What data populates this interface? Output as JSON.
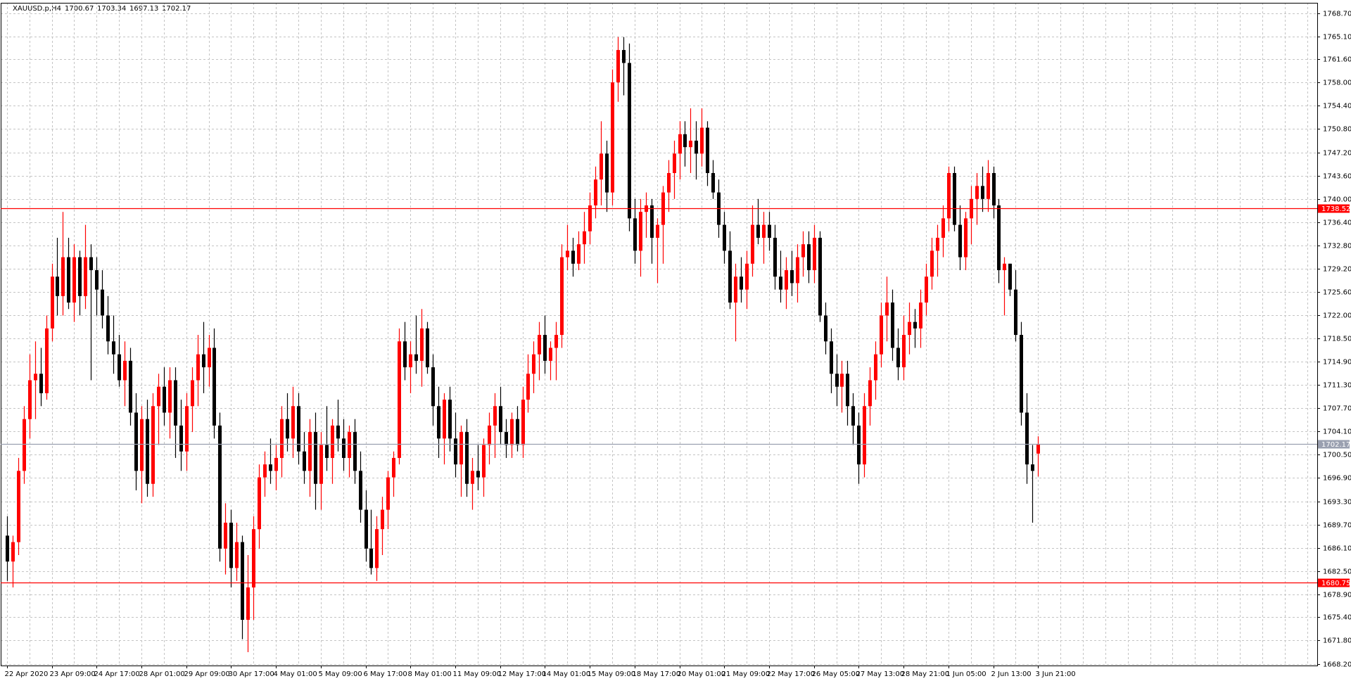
{
  "chart_data": {
    "type": "candlestick",
    "title": "XAUUSD.p,H4",
    "categories": [
      "22 Apr 2020",
      null,
      null,
      null,
      null,
      null,
      null,
      null,
      "23 Apr 09:00",
      null,
      null,
      null,
      null,
      null,
      null,
      null,
      "24 Apr 17:00",
      null,
      null,
      null,
      null,
      null,
      null,
      null,
      "28 Apr 01:00",
      null,
      null,
      null,
      null,
      null,
      null,
      null,
      "29 Apr 09:00",
      null,
      null,
      null,
      null,
      null,
      null,
      null,
      "30 Apr 17:00",
      null,
      null,
      null,
      null,
      null,
      null,
      null,
      "4 May 01:00",
      null,
      null,
      null,
      null,
      null,
      null,
      null,
      "5 May 09:00",
      null,
      null,
      null,
      null,
      null,
      null,
      null,
      "6 May 17:00",
      null,
      null,
      null,
      null,
      null,
      null,
      null,
      "8 May 01:00",
      null,
      null,
      null,
      null,
      null,
      null,
      null,
      "11 May 09:00",
      null,
      null,
      null,
      null,
      null,
      null,
      null,
      "12 May 17:00",
      null,
      null,
      null,
      null,
      null,
      null,
      null,
      "14 May 01:00",
      null,
      null,
      null,
      null,
      null,
      null,
      null,
      "15 May 09:00",
      null,
      null,
      null,
      null,
      null,
      null,
      null,
      "18 May 17:00",
      null,
      null,
      null,
      null,
      null,
      null,
      null,
      "20 May 01:00",
      null,
      null,
      null,
      null,
      null,
      null,
      null,
      "21 May 09:00",
      null,
      null,
      null,
      null,
      null,
      null,
      null,
      "22 May 17:00",
      null,
      null,
      null,
      null,
      null,
      null,
      null,
      "26 May 05:00",
      null,
      null,
      null,
      null,
      null,
      null,
      null,
      "27 May 13:00",
      null,
      null,
      null,
      null,
      null,
      null,
      null,
      "28 May 21:00",
      null,
      null,
      null,
      null,
      null,
      null,
      null,
      "1 Jun 05:00",
      null,
      null,
      null,
      null,
      null,
      null,
      null,
      "2 Jun 13:00",
      null,
      null,
      null,
      null,
      null,
      null,
      null,
      "3 Jun 21:00"
    ],
    "open": [
      1688,
      1684,
      1687,
      1698,
      1706,
      1712,
      1713,
      1710,
      1720,
      1728,
      1725,
      1731,
      1724,
      1731,
      1725,
      1731,
      1729,
      1726,
      1722,
      1718,
      1716,
      1712,
      1715,
      1707,
      1698,
      1706,
      1696,
      1708,
      1711,
      1707,
      1712,
      1705,
      1701,
      1708,
      1712,
      1716,
      1714,
      1717,
      1705,
      1686,
      1690,
      1683,
      1687,
      1675,
      1680,
      1689,
      1697,
      1699,
      1698,
      1700,
      1706,
      1703,
      1708,
      1701,
      1698,
      1704,
      1696,
      1702,
      1700,
      1705,
      1703,
      1700,
      1704,
      1698,
      1692,
      1686,
      1683,
      1689,
      1692,
      1697,
      1700,
      1718,
      1714,
      1716,
      1715,
      1720,
      1714,
      1708,
      1703,
      1709,
      1703,
      1699,
      1704,
      1696,
      1698,
      1697,
      1702,
      1705,
      1708,
      1704,
      1702,
      1706,
      1702,
      1709,
      1713,
      1716,
      1719,
      1715,
      1717,
      1719,
      1731,
      1732,
      1730,
      1733,
      1735,
      1739,
      1743,
      1747,
      1741,
      1758,
      1763,
      1761,
      1737,
      1732,
      1738,
      1739,
      1734,
      1736,
      1741,
      1744,
      1747,
      1750,
      1748,
      1749,
      1747,
      1751,
      1744,
      1741,
      1736,
      1732,
      1724,
      1728,
      1726,
      1730,
      1736,
      1734,
      1736,
      1734,
      1728,
      1726,
      1729,
      1727,
      1731,
      1733,
      1729,
      1734,
      1722,
      1718,
      1713,
      1711,
      1713,
      1708,
      1705,
      1699,
      1708,
      1712,
      1716,
      1722,
      1724,
      1717,
      1714,
      1719,
      1721,
      1720,
      1724,
      1728,
      1732,
      1734,
      1737,
      1744,
      1736,
      1731,
      1737,
      1740,
      1742,
      1740,
      1744,
      1739,
      1729,
      1730,
      1726,
      1719,
      1707,
      1699,
      1700.67
    ],
    "high": [
      1691,
      1688,
      1700,
      1708,
      1716,
      1718,
      1717,
      1722,
      1730,
      1734,
      1738,
      1734,
      1733,
      1732,
      1736,
      1733,
      1731,
      1729,
      1725,
      1722,
      1719,
      1718,
      1717,
      1710,
      1708,
      1709,
      1710,
      1713,
      1714,
      1714,
      1714,
      1709,
      1710,
      1714,
      1719,
      1721,
      1719,
      1720,
      1707,
      1693,
      1692,
      1690,
      1688,
      1685,
      1691,
      1699,
      1701,
      1703,
      1702,
      1708,
      1710,
      1711,
      1710,
      1704,
      1706,
      1707,
      1704,
      1708,
      1706,
      1709,
      1706,
      1705,
      1706,
      1701,
      1695,
      1692,
      1691,
      1694,
      1698,
      1701,
      1720,
      1721,
      1718,
      1722,
      1723,
      1721,
      1716,
      1711,
      1710,
      1711,
      1707,
      1705,
      1706,
      1700,
      1702,
      1703,
      1707,
      1710,
      1711,
      1706,
      1707,
      1708,
      1711,
      1716,
      1718,
      1721,
      1722,
      1718,
      1721,
      1733,
      1736,
      1734,
      1735,
      1738,
      1741,
      1745,
      1752,
      1749,
      1760,
      1765,
      1765,
      1764,
      1740,
      1740,
      1741,
      1740,
      1737,
      1742,
      1746,
      1749,
      1752,
      1752,
      1754,
      1752,
      1754,
      1752,
      1746,
      1743,
      1738,
      1735,
      1730,
      1731,
      1732,
      1739,
      1740,
      1738,
      1738,
      1736,
      1732,
      1731,
      1732,
      1733,
      1735,
      1735,
      1736,
      1735,
      1724,
      1720,
      1716,
      1715,
      1715,
      1710,
      1707,
      1710,
      1714,
      1718,
      1724,
      1728,
      1726,
      1720,
      1722,
      1724,
      1723,
      1726,
      1730,
      1734,
      1736,
      1739,
      1745,
      1745,
      1739,
      1738,
      1742,
      1744,
      1745,
      1746,
      1745,
      1740,
      1731,
      1730,
      1729,
      1721,
      1710,
      1702,
      1703.34
    ],
    "low": [
      1681,
      1680,
      1685,
      1696,
      1703,
      1706,
      1708,
      1709,
      1718,
      1722,
      1722,
      1723,
      1721,
      1722,
      1723,
      1712,
      1722,
      1720,
      1716,
      1713,
      1711,
      1708,
      1705,
      1695,
      1693,
      1694,
      1694,
      1702,
      1705,
      1703,
      1700,
      1698,
      1698,
      1704,
      1708,
      1710,
      1711,
      1703,
      1684,
      1682,
      1680,
      1681,
      1672,
      1670,
      1675,
      1686,
      1694,
      1696,
      1695,
      1697,
      1701,
      1700,
      1699,
      1696,
      1694,
      1692,
      1692,
      1698,
      1696,
      1701,
      1698,
      1697,
      1696,
      1690,
      1684,
      1682,
      1681,
      1685,
      1689,
      1694,
      1699,
      1712,
      1710,
      1713,
      1711,
      1713,
      1705,
      1700,
      1699,
      1701,
      1697,
      1694,
      1694,
      1692,
      1695,
      1694,
      1699,
      1700,
      1702,
      1700,
      1700,
      1701,
      1700,
      1707,
      1710,
      1712,
      1713,
      1712,
      1712,
      1717,
      1729,
      1728,
      1729,
      1730,
      1733,
      1737,
      1739,
      1738,
      1739,
      1755,
      1756,
      1735,
      1730,
      1728,
      1734,
      1730,
      1727,
      1730,
      1738,
      1740,
      1743,
      1745,
      1744,
      1743,
      1745,
      1742,
      1740,
      1734,
      1730,
      1723,
      1718,
      1724,
      1723,
      1728,
      1733,
      1730,
      1732,
      1726,
      1724,
      1723,
      1725,
      1724,
      1728,
      1727,
      1727,
      1721,
      1716,
      1710,
      1708,
      1707,
      1705,
      1702,
      1696,
      1697,
      1705,
      1709,
      1714,
      1718,
      1715,
      1712,
      1712,
      1716,
      1717,
      1717,
      1722,
      1726,
      1728,
      1731,
      1735,
      1735,
      1729,
      1729,
      1733,
      1736,
      1738,
      1738,
      1737,
      1727,
      1722,
      1725,
      1718,
      1705,
      1696,
      1690,
      1697.13
    ],
    "close": [
      1684,
      1687,
      1698,
      1706,
      1712,
      1713,
      1710,
      1720,
      1728,
      1725,
      1731,
      1724,
      1731,
      1725,
      1731,
      1729,
      1726,
      1722,
      1718,
      1716,
      1712,
      1715,
      1707,
      1698,
      1706,
      1696,
      1708,
      1711,
      1707,
      1712,
      1705,
      1701,
      1708,
      1712,
      1716,
      1714,
      1717,
      1705,
      1686,
      1690,
      1683,
      1687,
      1675,
      1680,
      1689,
      1697,
      1699,
      1698,
      1700,
      1706,
      1703,
      1708,
      1701,
      1698,
      1704,
      1696,
      1702,
      1700,
      1705,
      1703,
      1700,
      1704,
      1698,
      1692,
      1686,
      1683,
      1689,
      1692,
      1697,
      1700,
      1718,
      1714,
      1716,
      1715,
      1720,
      1714,
      1708,
      1703,
      1709,
      1703,
      1699,
      1704,
      1696,
      1698,
      1697,
      1702,
      1705,
      1708,
      1704,
      1702,
      1706,
      1702,
      1709,
      1713,
      1716,
      1719,
      1715,
      1717,
      1719,
      1731,
      1732,
      1730,
      1733,
      1735,
      1739,
      1743,
      1747,
      1741,
      1758,
      1763,
      1761,
      1737,
      1732,
      1738,
      1739,
      1734,
      1736,
      1741,
      1744,
      1747,
      1750,
      1748,
      1749,
      1747,
      1751,
      1744,
      1741,
      1736,
      1732,
      1724,
      1728,
      1726,
      1730,
      1736,
      1734,
      1736,
      1734,
      1728,
      1726,
      1729,
      1727,
      1731,
      1733,
      1729,
      1734,
      1722,
      1718,
      1713,
      1711,
      1713,
      1708,
      1705,
      1699,
      1708,
      1712,
      1716,
      1722,
      1724,
      1717,
      1714,
      1719,
      1721,
      1720,
      1724,
      1728,
      1732,
      1734,
      1737,
      1744,
      1736,
      1731,
      1737,
      1740,
      1742,
      1740,
      1744,
      1739,
      1729,
      1730,
      1726,
      1719,
      1707,
      1699,
      1698,
      1702.17
    ],
    "up_color": "#ff0000",
    "down_color": "#000000",
    "ylim": [
      1667.94,
      1770.29
    ],
    "yticks": [
      {
        "value": 1668.2,
        "label": "1668.20"
      },
      {
        "value": 1671.8,
        "label": "1671.80"
      },
      {
        "value": 1675.4,
        "label": "1675.40"
      },
      {
        "value": 1678.9,
        "label": "1678.90"
      },
      {
        "value": 1682.5,
        "label": "1682.50"
      },
      {
        "value": 1686.1,
        "label": "1686.10"
      },
      {
        "value": 1689.7,
        "label": "1689.70"
      },
      {
        "value": 1693.3,
        "label": "1693.30"
      },
      {
        "value": 1696.9,
        "label": "1696.90"
      },
      {
        "value": 1700.5,
        "label": "1700.50"
      },
      {
        "value": 1704.1,
        "label": "1704.10"
      },
      {
        "value": 1707.7,
        "label": "1707.70"
      },
      {
        "value": 1711.3,
        "label": "1711.30"
      },
      {
        "value": 1714.9,
        "label": "1714.90"
      },
      {
        "value": 1718.5,
        "label": "1718.50"
      },
      {
        "value": 1722,
        "label": "1722.00"
      },
      {
        "value": 1725.6,
        "label": "1725.60"
      },
      {
        "value": 1729.2,
        "label": "1729.20"
      },
      {
        "value": 1732.8,
        "label": "1732.80"
      },
      {
        "value": 1736.4,
        "label": "1736.40"
      },
      {
        "value": 1740,
        "label": "1740.00"
      },
      {
        "value": 1743.6,
        "label": "1743.60"
      },
      {
        "value": 1747.2,
        "label": "1747.20"
      },
      {
        "value": 1750.8,
        "label": "1750.80"
      },
      {
        "value": 1754.4,
        "label": "1754.40"
      },
      {
        "value": 1758,
        "label": "1758.00"
      },
      {
        "value": 1761.6,
        "label": "1761.60"
      },
      {
        "value": 1765.1,
        "label": "1765.10"
      },
      {
        "value": 1768.7,
        "label": "1768.70"
      }
    ],
    "grid": true,
    "hlines": [
      {
        "value": 1738.52,
        "color": "#ff0000"
      },
      {
        "value": 1680.75,
        "color": "#ff0000"
      },
      {
        "value": 1702.17,
        "color": "#9aa0b0"
      }
    ]
  }
}
